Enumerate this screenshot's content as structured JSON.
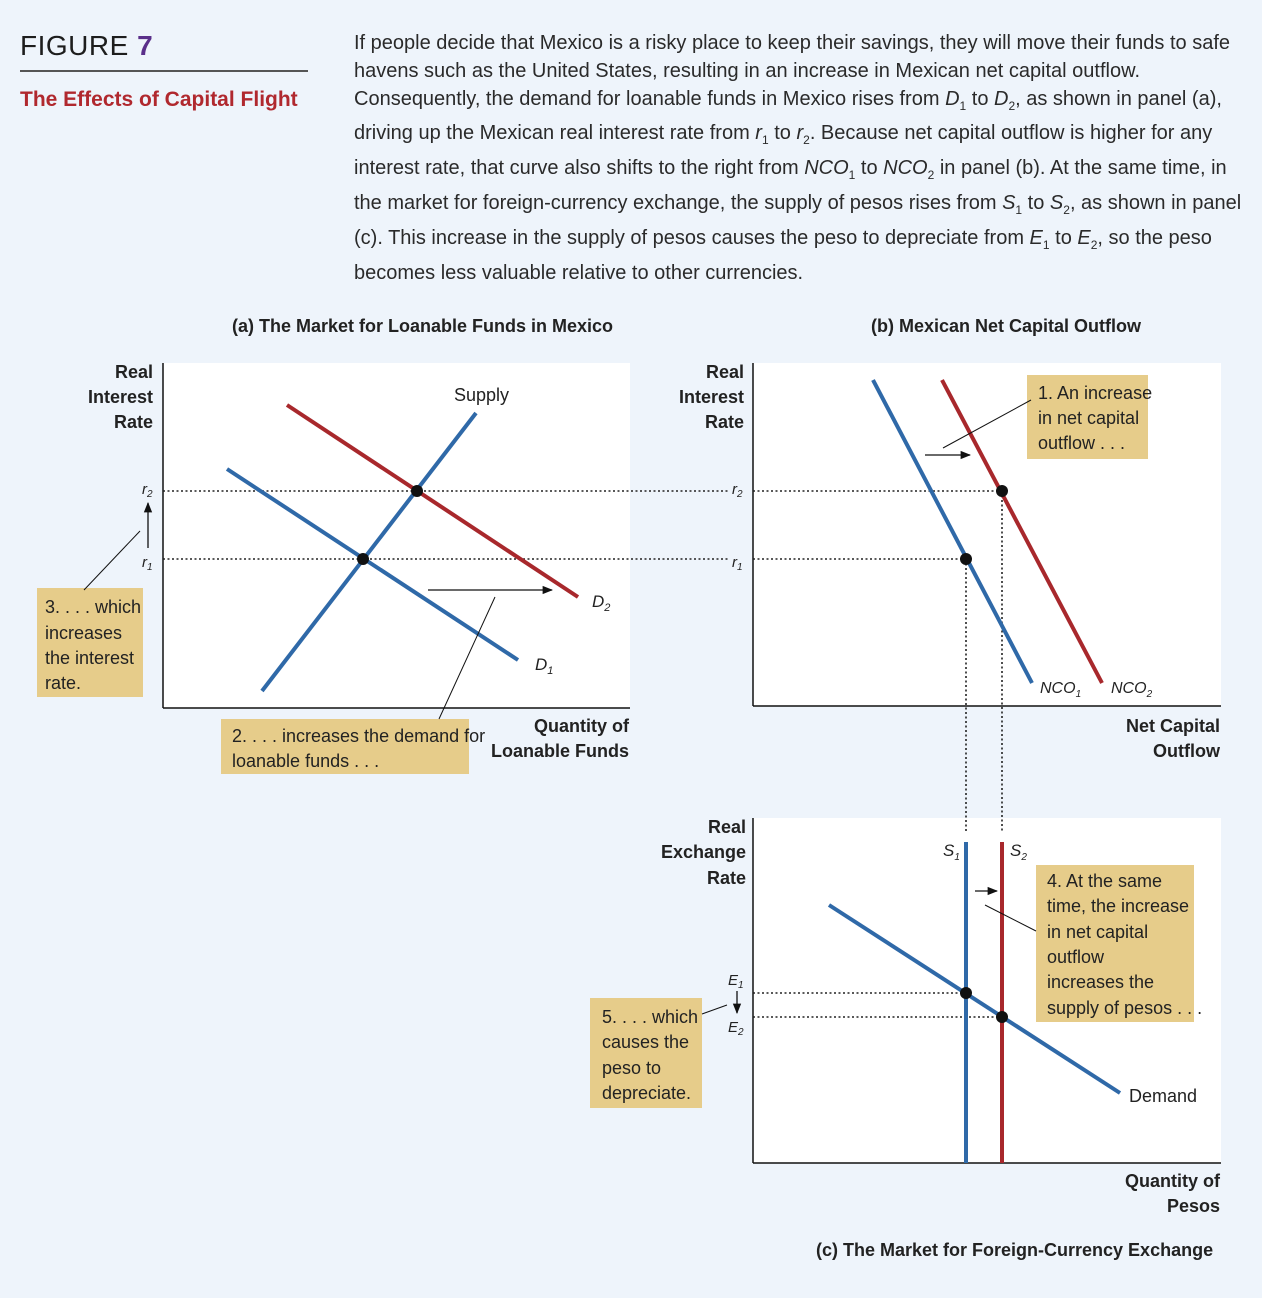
{
  "figure": {
    "label": "FIGURE",
    "number": "7",
    "title": "The Effects of Capital Flight"
  },
  "caption": {
    "part1": "If people decide that Mexico is a risky place to keep their savings, they will move their funds to safe havens such as the United States, resulting in an increase in Mexican net capital outflow. Consequently, the demand for loanable funds in Mexico rises from ",
    "d1": "D",
    "sub1": "1",
    "to1": " to ",
    "d2": "D",
    "sub2": "2",
    "part2": ", as shown in panel (a), driving up the Mexican real interest rate from ",
    "r1": "r",
    "part3": " to ",
    "r2": "r",
    "part4": ". Because net capital outflow is higher for any interest rate, that curve also shifts to the right from ",
    "nco1": "NCO",
    "part5": " to ",
    "nco2": "NCO",
    "part6": " in panel (b). At the same time, in the market for foreign-currency exchange, the supply of pesos rises from ",
    "s1": "S",
    "part7": " to ",
    "s2": "S",
    "part8": ", as shown in panel (c). This increase in the supply of pesos causes the peso to depreciate from ",
    "e1": "E",
    "part9": " to ",
    "e2": "E",
    "part10": ", so the peso becomes less valuable relative to other currencies."
  },
  "colors": {
    "blue": "#2f69a8",
    "red": "#a8282c",
    "note_bg": "#e6cc8a",
    "panel_bg": "#ffffff",
    "page_bg": "#eef4fb"
  },
  "panel_a": {
    "title": "(a) The Market for Loanable Funds in Mexico",
    "y_label": [
      "Real",
      "Interest",
      "Rate"
    ],
    "x_label": [
      "Quantity of",
      "Loanable Funds"
    ],
    "supply_label": "Supply",
    "d1_label": "D",
    "d2_label": "D",
    "sub_1": "1",
    "sub_2": "2",
    "r_label": "r"
  },
  "panel_b": {
    "title": "(b) Mexican Net Capital Outflow",
    "y_label": [
      "Real",
      "Interest",
      "Rate"
    ],
    "x_label": [
      "Net Capital",
      "Outflow"
    ],
    "nco_label": "NCO"
  },
  "panel_c": {
    "title": "(c) The Market for Foreign-Currency Exchange",
    "y_label": [
      "Real",
      "Exchange",
      "Rate"
    ],
    "x_label": [
      "Quantity of",
      "Pesos"
    ],
    "s_label": "S",
    "demand_label": "Demand",
    "e_label": "E"
  },
  "notes": {
    "note1": [
      "1. An increase",
      "in net capital",
      "outflow . . ."
    ],
    "note2": [
      "2. . . . increases the demand for",
      "loanable funds . . ."
    ],
    "note3": [
      "3. . . . which",
      "increases",
      "the interest",
      "rate."
    ],
    "note4": [
      "4. At the same",
      "time, the increase",
      "in net capital",
      "outflow",
      "increases the",
      "supply of pesos . . ."
    ],
    "note5": [
      "5. . . . which",
      "causes the",
      "peso to",
      "depreciate."
    ]
  }
}
